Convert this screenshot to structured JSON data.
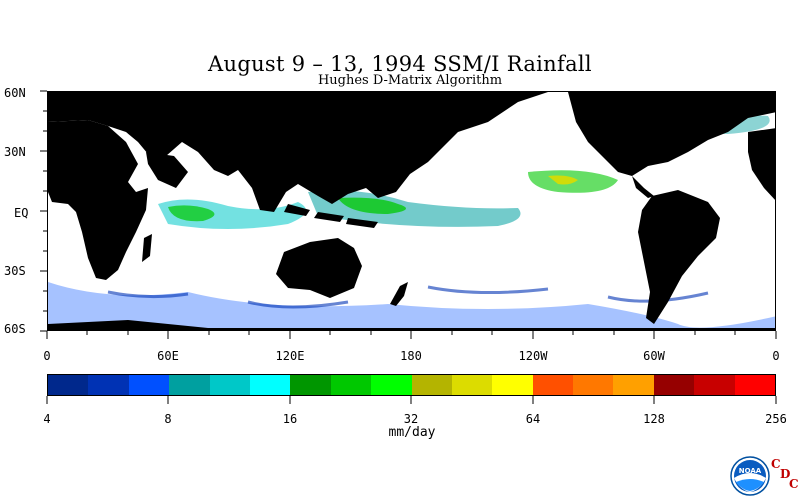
{
  "title": "August 9 – 13, 1994 SSM/I Rainfall",
  "subtitle": "Hughes D-Matrix Algorithm",
  "lat_labels": [
    "60N",
    "30N",
    "EQ",
    "30S",
    "60S"
  ],
  "lon_labels": [
    "0",
    "60E",
    "120E",
    "180",
    "120W",
    "60W",
    "0"
  ],
  "colorbar": {
    "colors": [
      "#00288c",
      "#0032b4",
      "#0050ff",
      "#00a0a0",
      "#00c8c8",
      "#00ffff",
      "#009600",
      "#00c800",
      "#00ff00",
      "#b4b400",
      "#dcdc00",
      "#ffff00",
      "#ff5000",
      "#ff7800",
      "#ffa000",
      "#960000",
      "#c80000",
      "#ff0000"
    ],
    "tick_labels": [
      "4",
      "8",
      "16",
      "32",
      "64",
      "128",
      "256"
    ],
    "units": "mm/day"
  },
  "logo": {
    "icon": "noaa-logo",
    "text": "NOAA",
    "cdc_letters": [
      "C",
      "D",
      "C"
    ]
  },
  "colors": {
    "land": "#000000",
    "ocean": "#ffffff"
  }
}
